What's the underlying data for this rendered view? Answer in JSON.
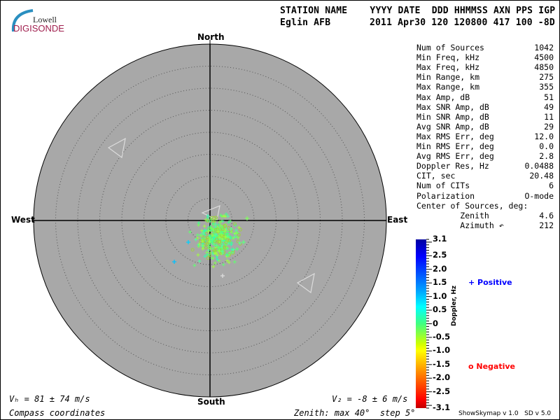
{
  "logo": {
    "line1": "Lowell",
    "line2": "DIGISONDE"
  },
  "header": {
    "labels": "STATION NAME    YYYY DATE  DDD HHMMSS AXN PPS IGP",
    "station": "Eglin AFB",
    "values": "2011 Apr30 120 120800 417 100 -8D"
  },
  "stats": [
    {
      "label": "Num of Sources",
      "value": "1042"
    },
    {
      "label": "Min Freq, kHz",
      "value": "4500"
    },
    {
      "label": "Max Freq, kHz",
      "value": "4850"
    },
    {
      "label": "Min Range, km",
      "value": "275"
    },
    {
      "label": "Max Range, km",
      "value": "355"
    },
    {
      "label": "Max Amp, dB",
      "value": "51"
    },
    {
      "label": "Max SNR Amp, dB",
      "value": "49"
    },
    {
      "label": "Min SNR Amp, dB",
      "value": "11"
    },
    {
      "label": "Avg SNR Amp, dB",
      "value": "29"
    },
    {
      "label": "Max RMS Err, deg",
      "value": "12.0"
    },
    {
      "label": "Min RMS Err, deg",
      "value": "0.0"
    },
    {
      "label": "Avg RMS Err, deg",
      "value": "2.8"
    },
    {
      "label": "Doppler Res, Hz",
      "value": "0.0488"
    },
    {
      "label": "CIT, sec",
      "value": "20.48"
    },
    {
      "label": "Num of CITs",
      "value": "6"
    },
    {
      "label": "Polarization",
      "value": "O-mode"
    },
    {
      "label": "Center of Sources, deg:",
      "value": ""
    },
    {
      "label": "         Zenith",
      "value": "4.6"
    },
    {
      "label": "         Azimuth ↶",
      "value": "212"
    }
  ],
  "colorbar": {
    "title": "Doppler, Hz",
    "ticks": [
      "3.1",
      "2.5",
      "2.0",
      "1.5",
      "1.0",
      "0.5",
      "0",
      "-0.5",
      "-1.0",
      "-1.5",
      "-2.0",
      "-2.5",
      "-3.1"
    ],
    "positive_label": "Positive",
    "negative_label": "Negative",
    "positive_color": "#0000ff",
    "negative_color": "#ff0000"
  },
  "footer": {
    "vh": "Vₕ = 81 ± 74 m/s",
    "vz": "V₂ = -8 ± 6 m/s",
    "coords": "Compass coordinates",
    "zenith": "Zenith: max 40°  step 5°"
  },
  "version": "ShowSkymap v 1.0   SD v 5.0",
  "chart_data": {
    "type": "scatter",
    "projection": "polar-skymap",
    "directions": {
      "north": "North",
      "south": "South",
      "east": "East",
      "west": "West"
    },
    "zenith_max_deg": 40,
    "zenith_step_deg": 5,
    "center_of_sources": {
      "zenith_deg": 4.6,
      "azimuth_deg": 212
    },
    "num_sources": 1042,
    "doppler_range_hz": [
      -3.1,
      3.1
    ],
    "background_color": "#a8a8a8",
    "dominant_doppler_hz": [
      -0.3,
      0.6
    ]
  }
}
